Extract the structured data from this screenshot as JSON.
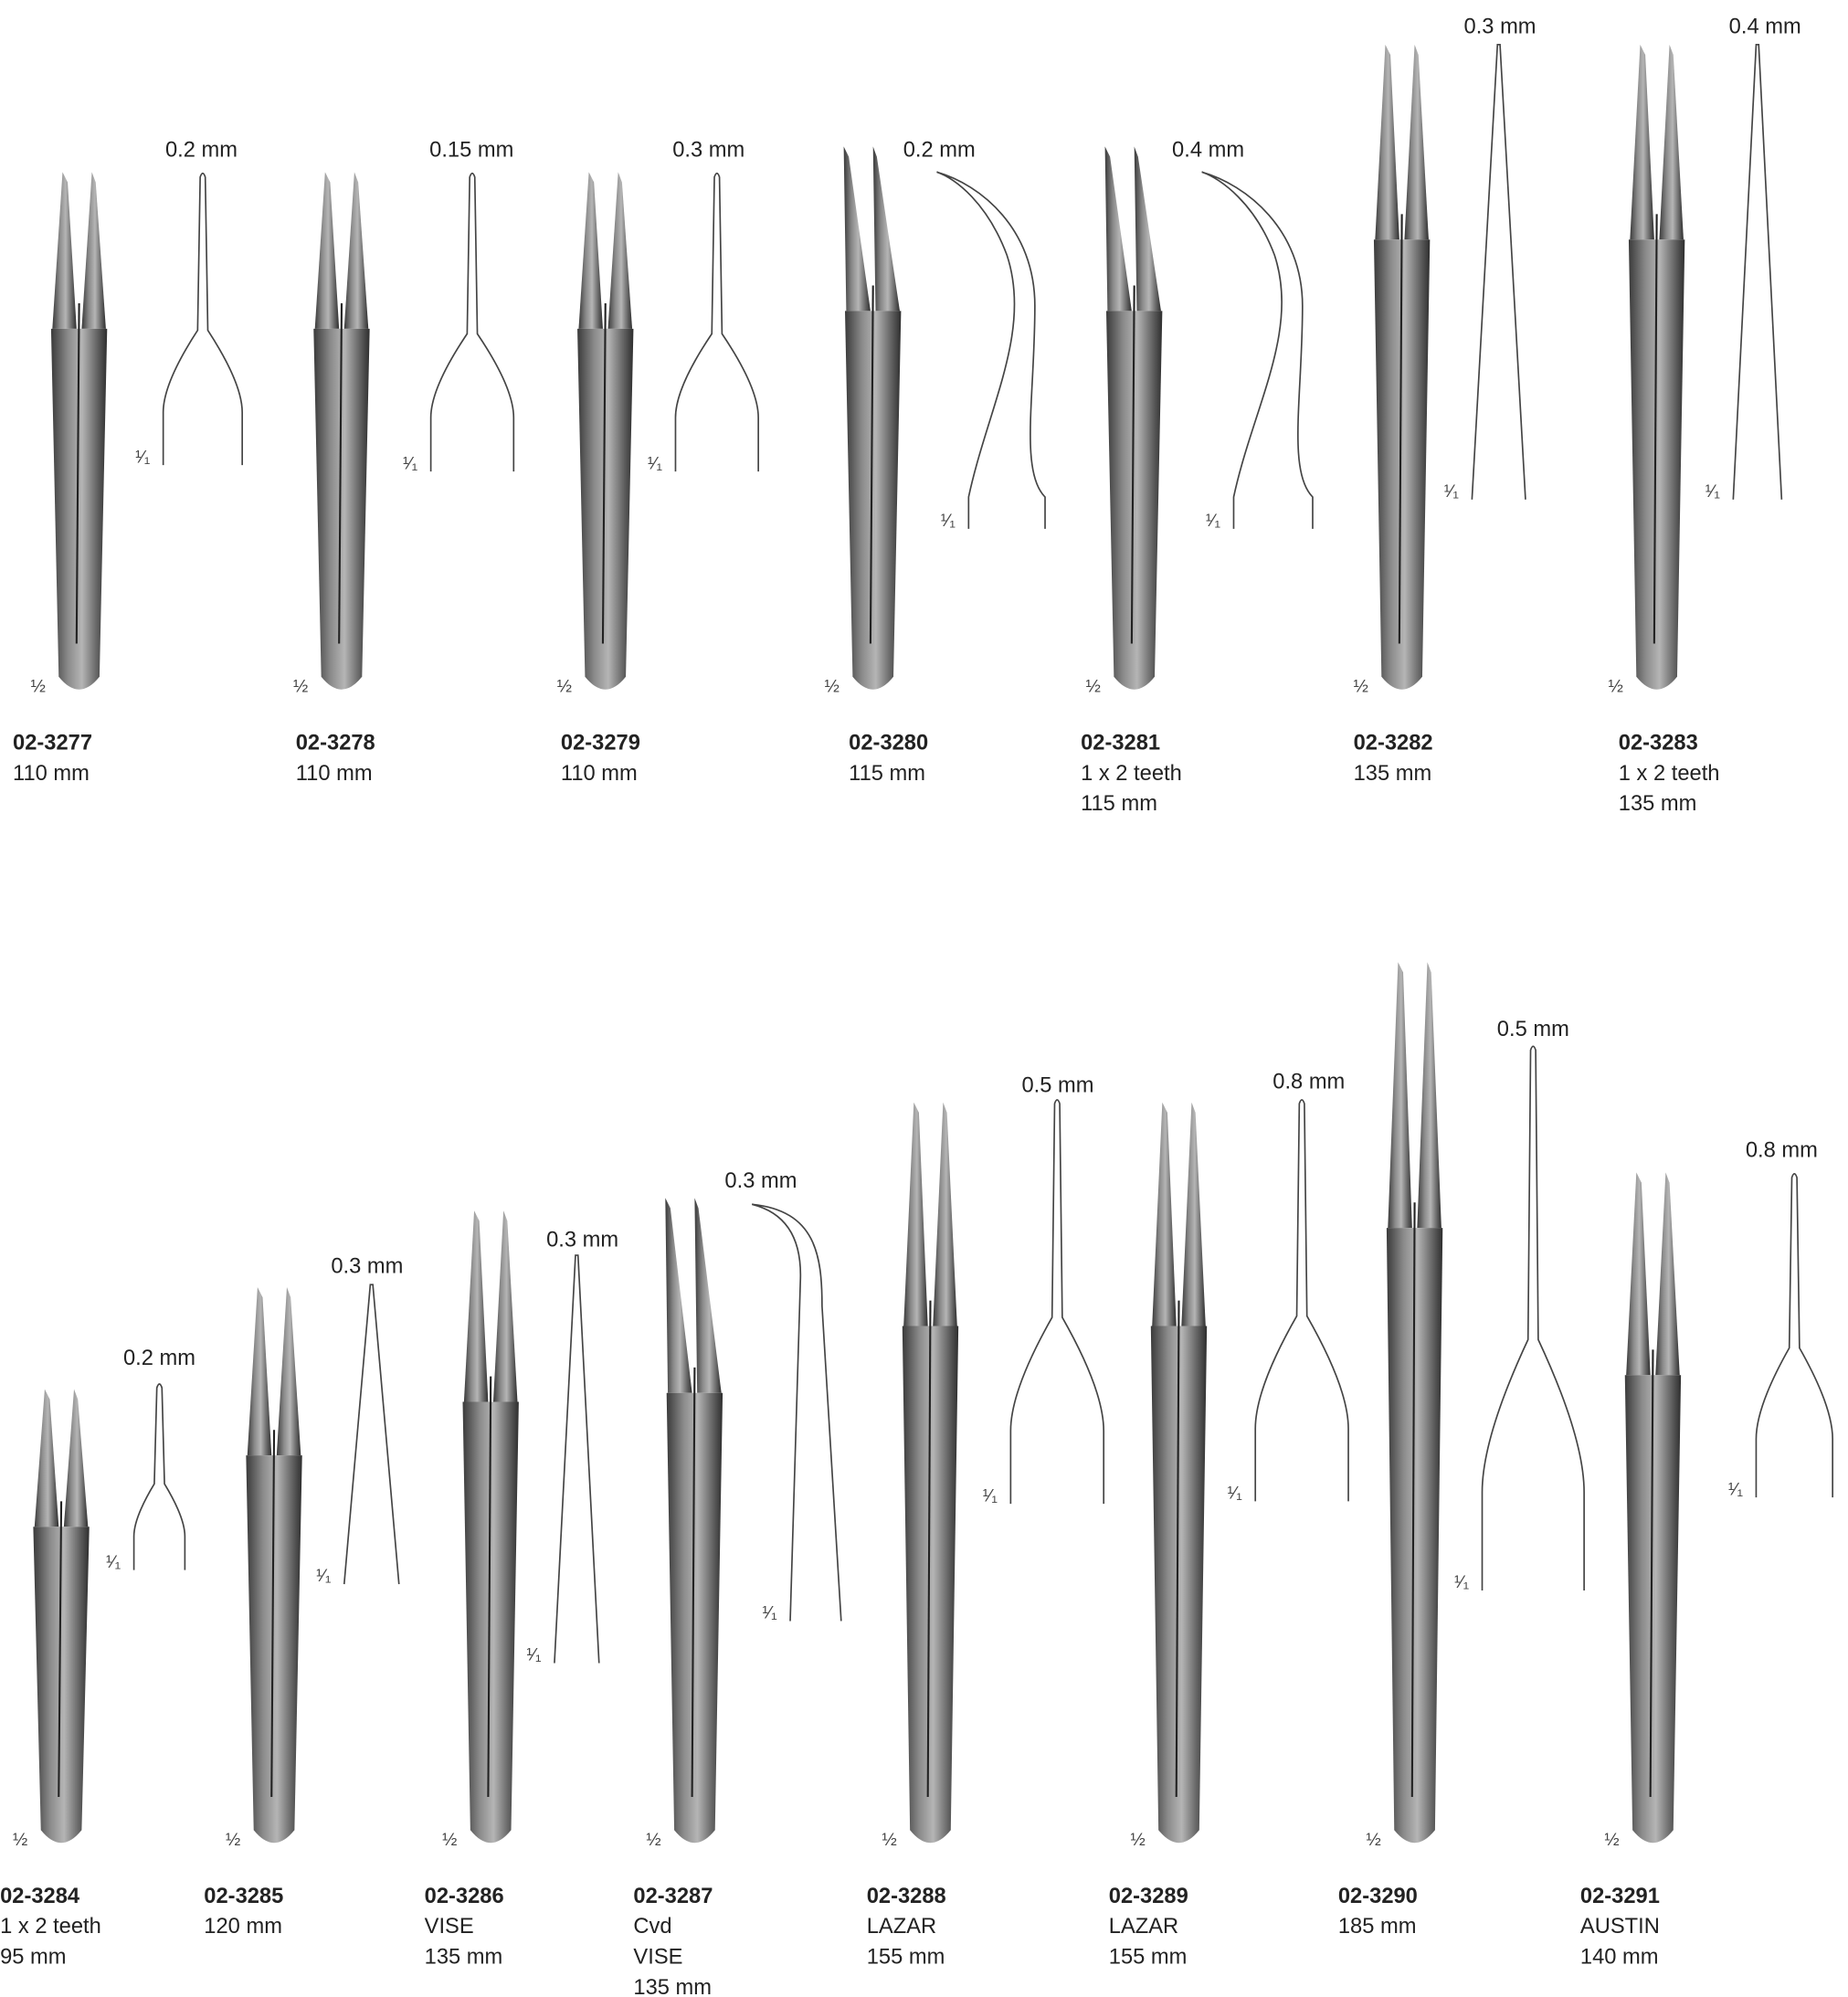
{
  "scale_labels": {
    "instrument": "½",
    "tip": "¹⁄₁"
  },
  "items": [
    {
      "code": "02-3277",
      "lines": [
        "110 mm"
      ],
      "tip": "0.2 mm"
    },
    {
      "code": "02-3278",
      "lines": [
        "110 mm"
      ],
      "tip": "0.15 mm"
    },
    {
      "code": "02-3279",
      "lines": [
        "110 mm"
      ],
      "tip": "0.3 mm"
    },
    {
      "code": "02-3280",
      "lines": [
        "115 mm"
      ],
      "tip": "0.2 mm"
    },
    {
      "code": "02-3281",
      "lines": [
        "1 x 2 teeth",
        "115 mm"
      ],
      "tip": "0.4 mm"
    },
    {
      "code": "02-3282",
      "lines": [
        "135 mm"
      ],
      "tip": "0.3 mm"
    },
    {
      "code": "02-3283",
      "lines": [
        "1 x 2 teeth",
        "135 mm"
      ],
      "tip": "0.4 mm"
    },
    {
      "code": "02-3284",
      "lines": [
        "1 x 2 teeth",
        "95 mm"
      ],
      "tip": "0.2 mm"
    },
    {
      "code": "02-3285",
      "lines": [
        "120 mm"
      ],
      "tip": "0.3 mm"
    },
    {
      "code": "02-3286",
      "lines": [
        "VISE",
        "135 mm"
      ],
      "tip": "0.3 mm"
    },
    {
      "code": "02-3287",
      "lines": [
        "Cvd",
        "VISE",
        "135 mm"
      ],
      "tip": "0.3 mm"
    },
    {
      "code": "02-3288",
      "lines": [
        "LAZAR",
        "155 mm"
      ],
      "tip": "0.5 mm"
    },
    {
      "code": "02-3289",
      "lines": [
        "LAZAR",
        "155 mm"
      ],
      "tip": "0.8 mm"
    },
    {
      "code": "02-3290",
      "lines": [
        "185 mm"
      ],
      "tip": "0.5 mm"
    },
    {
      "code": "02-3291",
      "lines": [
        "AUSTIN",
        "140 mm"
      ],
      "tip": "0.8 mm"
    }
  ]
}
